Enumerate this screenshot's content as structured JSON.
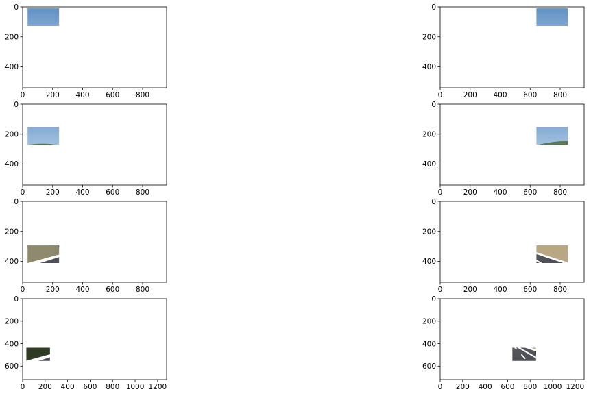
{
  "figure": {
    "layout": "4 rows x 2 columns grid of image panels with pixel-coordinate axes",
    "colors": {
      "sky": "#7aa6cf",
      "sky_top": "#5f8fc3",
      "road": "#4a4b52",
      "grass_dry": "#b9a784",
      "trees": "#4f6b3a",
      "lane_white": "#ffffff",
      "lane_yellow": "#e4b41c",
      "frame": "#000000"
    }
  },
  "chart_data": [
    {
      "type": "image",
      "scene": "highway-white-lanes",
      "xlim": [
        0,
        960
      ],
      "ylim": [
        540,
        0
      ],
      "xticks": [
        "0",
        "200",
        "400",
        "600",
        "800"
      ],
      "yticks": [
        "0",
        "200",
        "400"
      ],
      "ytick_values": [
        0,
        200,
        400
      ],
      "xtick_values": [
        0,
        200,
        400,
        600,
        800
      ]
    },
    {
      "type": "image",
      "scene": "highway-white-lanes-trees",
      "xlim": [
        0,
        960
      ],
      "ylim": [
        540,
        0
      ],
      "xticks": [
        "0",
        "200",
        "400",
        "600",
        "800"
      ],
      "yticks": [
        "0",
        "200",
        "400"
      ],
      "ytick_values": [
        0,
        200,
        400
      ],
      "xtick_values": [
        0,
        200,
        400,
        600,
        800
      ]
    },
    {
      "type": "image",
      "scene": "highway-yellow-left-lane",
      "xlim": [
        0,
        960
      ],
      "ylim": [
        540,
        0
      ],
      "xticks": [
        "0",
        "200",
        "400",
        "600",
        "800"
      ],
      "yticks": [
        "0",
        "200",
        "400"
      ],
      "ytick_values": [
        0,
        200,
        400
      ],
      "xtick_values": [
        0,
        200,
        400,
        600,
        800
      ]
    },
    {
      "type": "image",
      "scene": "highway-yellow-left-lane-hills",
      "xlim": [
        0,
        960
      ],
      "ylim": [
        540,
        0
      ],
      "xticks": [
        "0",
        "200",
        "400",
        "600",
        "800"
      ],
      "yticks": [
        "0",
        "200",
        "400"
      ],
      "ytick_values": [
        0,
        200,
        400
      ],
      "xtick_values": [
        0,
        200,
        400,
        600,
        800
      ]
    },
    {
      "type": "image",
      "scene": "highway-yellow-left-lane-far-cars",
      "xlim": [
        0,
        960
      ],
      "ylim": [
        540,
        0
      ],
      "xticks": [
        "0",
        "200",
        "400",
        "600",
        "800"
      ],
      "yticks": [
        "0",
        "200",
        "400"
      ],
      "ytick_values": [
        0,
        200,
        400
      ],
      "xtick_values": [
        0,
        200,
        400,
        600,
        800
      ]
    },
    {
      "type": "image",
      "scene": "highway-yellow-left-lane-hills-2",
      "xlim": [
        0,
        960
      ],
      "ylim": [
        540,
        0
      ],
      "xticks": [
        "0",
        "200",
        "400",
        "600",
        "800"
      ],
      "yticks": [
        "0",
        "200",
        "400"
      ],
      "ytick_values": [
        0,
        200,
        400
      ],
      "xtick_values": [
        0,
        200,
        400,
        600,
        800
      ]
    },
    {
      "type": "image",
      "scene": "shadowed-road-trees-cars",
      "xlim": [
        0,
        1280
      ],
      "ylim": [
        720,
        0
      ],
      "xticks": [
        "0",
        "200",
        "400",
        "600",
        "800",
        "1000",
        "1200"
      ],
      "yticks": [
        "0",
        "200",
        "400",
        "600"
      ],
      "ytick_values": [
        0,
        200,
        400,
        600
      ],
      "xtick_values": [
        0,
        200,
        400,
        600,
        800,
        1000,
        1200
      ]
    },
    {
      "type": "image",
      "scene": "bright-road-trees-cars",
      "xlim": [
        0,
        1280
      ],
      "ylim": [
        720,
        0
      ],
      "xticks": [
        "0",
        "200",
        "400",
        "600",
        "800",
        "1000",
        "1200"
      ],
      "yticks": [
        "0",
        "200",
        "400",
        "600"
      ],
      "ytick_values": [
        0,
        200,
        400,
        600
      ],
      "xtick_values": [
        0,
        200,
        400,
        600,
        800,
        1000,
        1200
      ]
    }
  ]
}
